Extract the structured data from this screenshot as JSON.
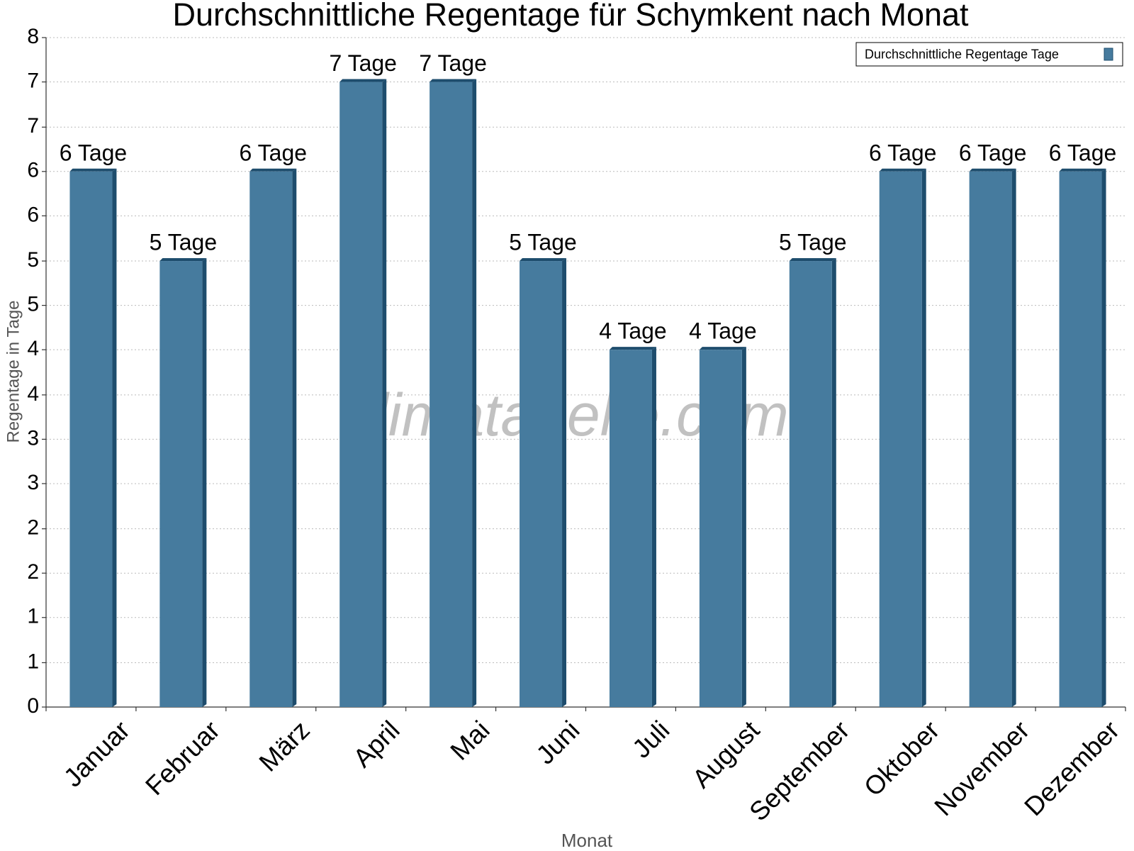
{
  "chart_data": {
    "type": "bar",
    "title": "Durchschnittliche Regentage für Schymkent nach Monat",
    "x_label": "Monat",
    "y_label": "Regentage in Tage",
    "watermark": "klimatabelle.com",
    "categories": [
      "Januar",
      "Februar",
      "März",
      "April",
      "Mai",
      "Juni",
      "Juli",
      "August",
      "September",
      "Oktober",
      "November",
      "Dezember"
    ],
    "series": [
      {
        "name": "Durchschnittliche Regentage Tage",
        "color": "#467b9e",
        "values": [
          6.4,
          5.33,
          6.4,
          7.47,
          7.47,
          5.33,
          4.27,
          4.27,
          5.33,
          6.4,
          6.4,
          6.4
        ],
        "value_labels": [
          "6 Tage",
          "5 Tage",
          "6 Tage",
          "7 Tage",
          "7 Tage",
          "5 Tage",
          "4 Tage",
          "4 Tage",
          "5 Tage",
          "6 Tage",
          "6 Tage",
          "6 Tage"
        ]
      }
    ],
    "ylim": [
      0,
      8
    ],
    "yticks": [
      0,
      {
        "value": 0.53,
        "label": "1"
      },
      {
        "value": 1.07,
        "label": "1"
      },
      {
        "value": 1.6,
        "label": "2"
      },
      {
        "value": 2.13,
        "label": "2"
      },
      {
        "value": 2.67,
        "label": "3"
      },
      {
        "value": 3.2,
        "label": "3"
      },
      {
        "value": 3.73,
        "label": "4"
      },
      {
        "value": 4.27,
        "label": "4"
      },
      {
        "value": 4.8,
        "label": "5"
      },
      {
        "value": 5.33,
        "label": "5"
      },
      {
        "value": 5.87,
        "label": "6"
      },
      {
        "value": 6.4,
        "label": "6"
      },
      {
        "value": 6.93,
        "label": "7"
      },
      {
        "value": 7.47,
        "label": "7"
      },
      8
    ],
    "grid": true,
    "legend_position": "top-right"
  }
}
